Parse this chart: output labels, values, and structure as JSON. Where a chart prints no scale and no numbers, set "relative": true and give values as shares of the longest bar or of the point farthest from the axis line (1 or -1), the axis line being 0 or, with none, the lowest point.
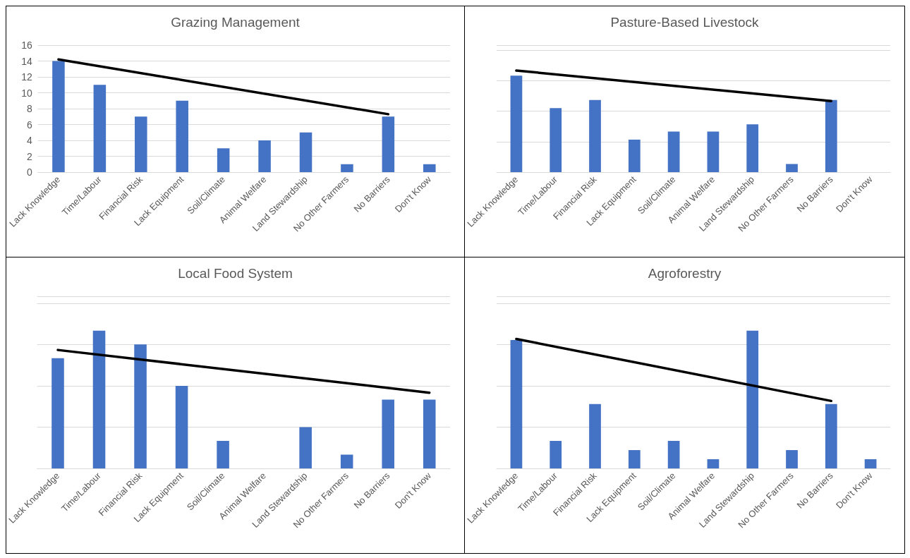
{
  "chart_data": [
    {
      "type": "bar",
      "title": "Grazing Management",
      "categories": [
        "Lack Knowledge",
        "Time/Labour",
        "Financial Risk",
        "Lack Equipment",
        "Soil/Climate",
        "Animal Welfare",
        "Land Stewardship",
        "No Other Farmers",
        "No Barriers",
        "Don't Know"
      ],
      "values": [
        14,
        11,
        7,
        9,
        3,
        4,
        5,
        1,
        7,
        1
      ],
      "color": "#4472c4",
      "ylim": [
        0,
        16
      ],
      "yticks": [
        0,
        2,
        4,
        6,
        8,
        10,
        12,
        14,
        16
      ],
      "grid": "y",
      "series": [
        {
          "type": "line",
          "x": [
            "Lack Knowledge",
            "No Barriers"
          ],
          "values": [
            14.2,
            7.3
          ],
          "color": "#000000"
        }
      ]
    },
    {
      "type": "bar",
      "title": "Pasture-Based Livestock",
      "relative": true,
      "tick_labels": "x",
      "categories": [
        "Lack Knowledge",
        "Time/Labour",
        "Financial Risk",
        "Lack Equipment",
        "Soil/Climate",
        "Animal Welfare",
        "Land Stewardship",
        "No Other Farmers",
        "No Barriers",
        "Don't Know"
      ],
      "values": [
        0.95,
        0.63,
        0.71,
        0.32,
        0.4,
        0.4,
        0.47,
        0.08,
        0.71,
        0
      ],
      "color": "#4472c4",
      "grid": "y",
      "series": [
        {
          "type": "line",
          "x": [
            "Lack Knowledge",
            "No Barriers"
          ],
          "values": [
            1,
            0.7
          ],
          "color": "#000000"
        }
      ]
    },
    {
      "type": "bar",
      "title": "Local Food System",
      "relative": true,
      "tick_labels": "x",
      "categories": [
        "Lack Knowledge",
        "Time/Labour",
        "Financial Risk",
        "Lack Equipment",
        "Soil/Climate",
        "Animal Welfare",
        "Land Stewardship",
        "No Other Farmers",
        "No Barriers",
        "Don't Know"
      ],
      "values": [
        0.8,
        1,
        0.9,
        0.6,
        0.2,
        0,
        0.3,
        0.1,
        0.5,
        0.5
      ],
      "color": "#4472c4",
      "grid": "y",
      "series": [
        {
          "type": "line",
          "x": [
            "Lack Knowledge",
            "Don't Know"
          ],
          "values": [
            0.86,
            0.55
          ],
          "color": "#000000"
        }
      ]
    },
    {
      "type": "bar",
      "title": "Agroforestry",
      "relative": true,
      "tick_labels": "x",
      "categories": [
        "Lack Knowledge",
        "Time/Labour",
        "Financial Risk",
        "Lack Equipment",
        "Soil/Climate",
        "Animal Welfare",
        "Land Stewardship",
        "No Other Farmers",
        "No Barriers",
        "Don't Know"
      ],
      "values": [
        0.933,
        0.2,
        0.467,
        0.133,
        0.2,
        0.067,
        1,
        0.133,
        0.467,
        0.067
      ],
      "color": "#4472c4",
      "grid": "y",
      "series": [
        {
          "type": "line",
          "x": [
            "Lack Knowledge",
            "No Barriers"
          ],
          "values": [
            0.94,
            0.49
          ],
          "color": "#000000"
        }
      ]
    }
  ]
}
